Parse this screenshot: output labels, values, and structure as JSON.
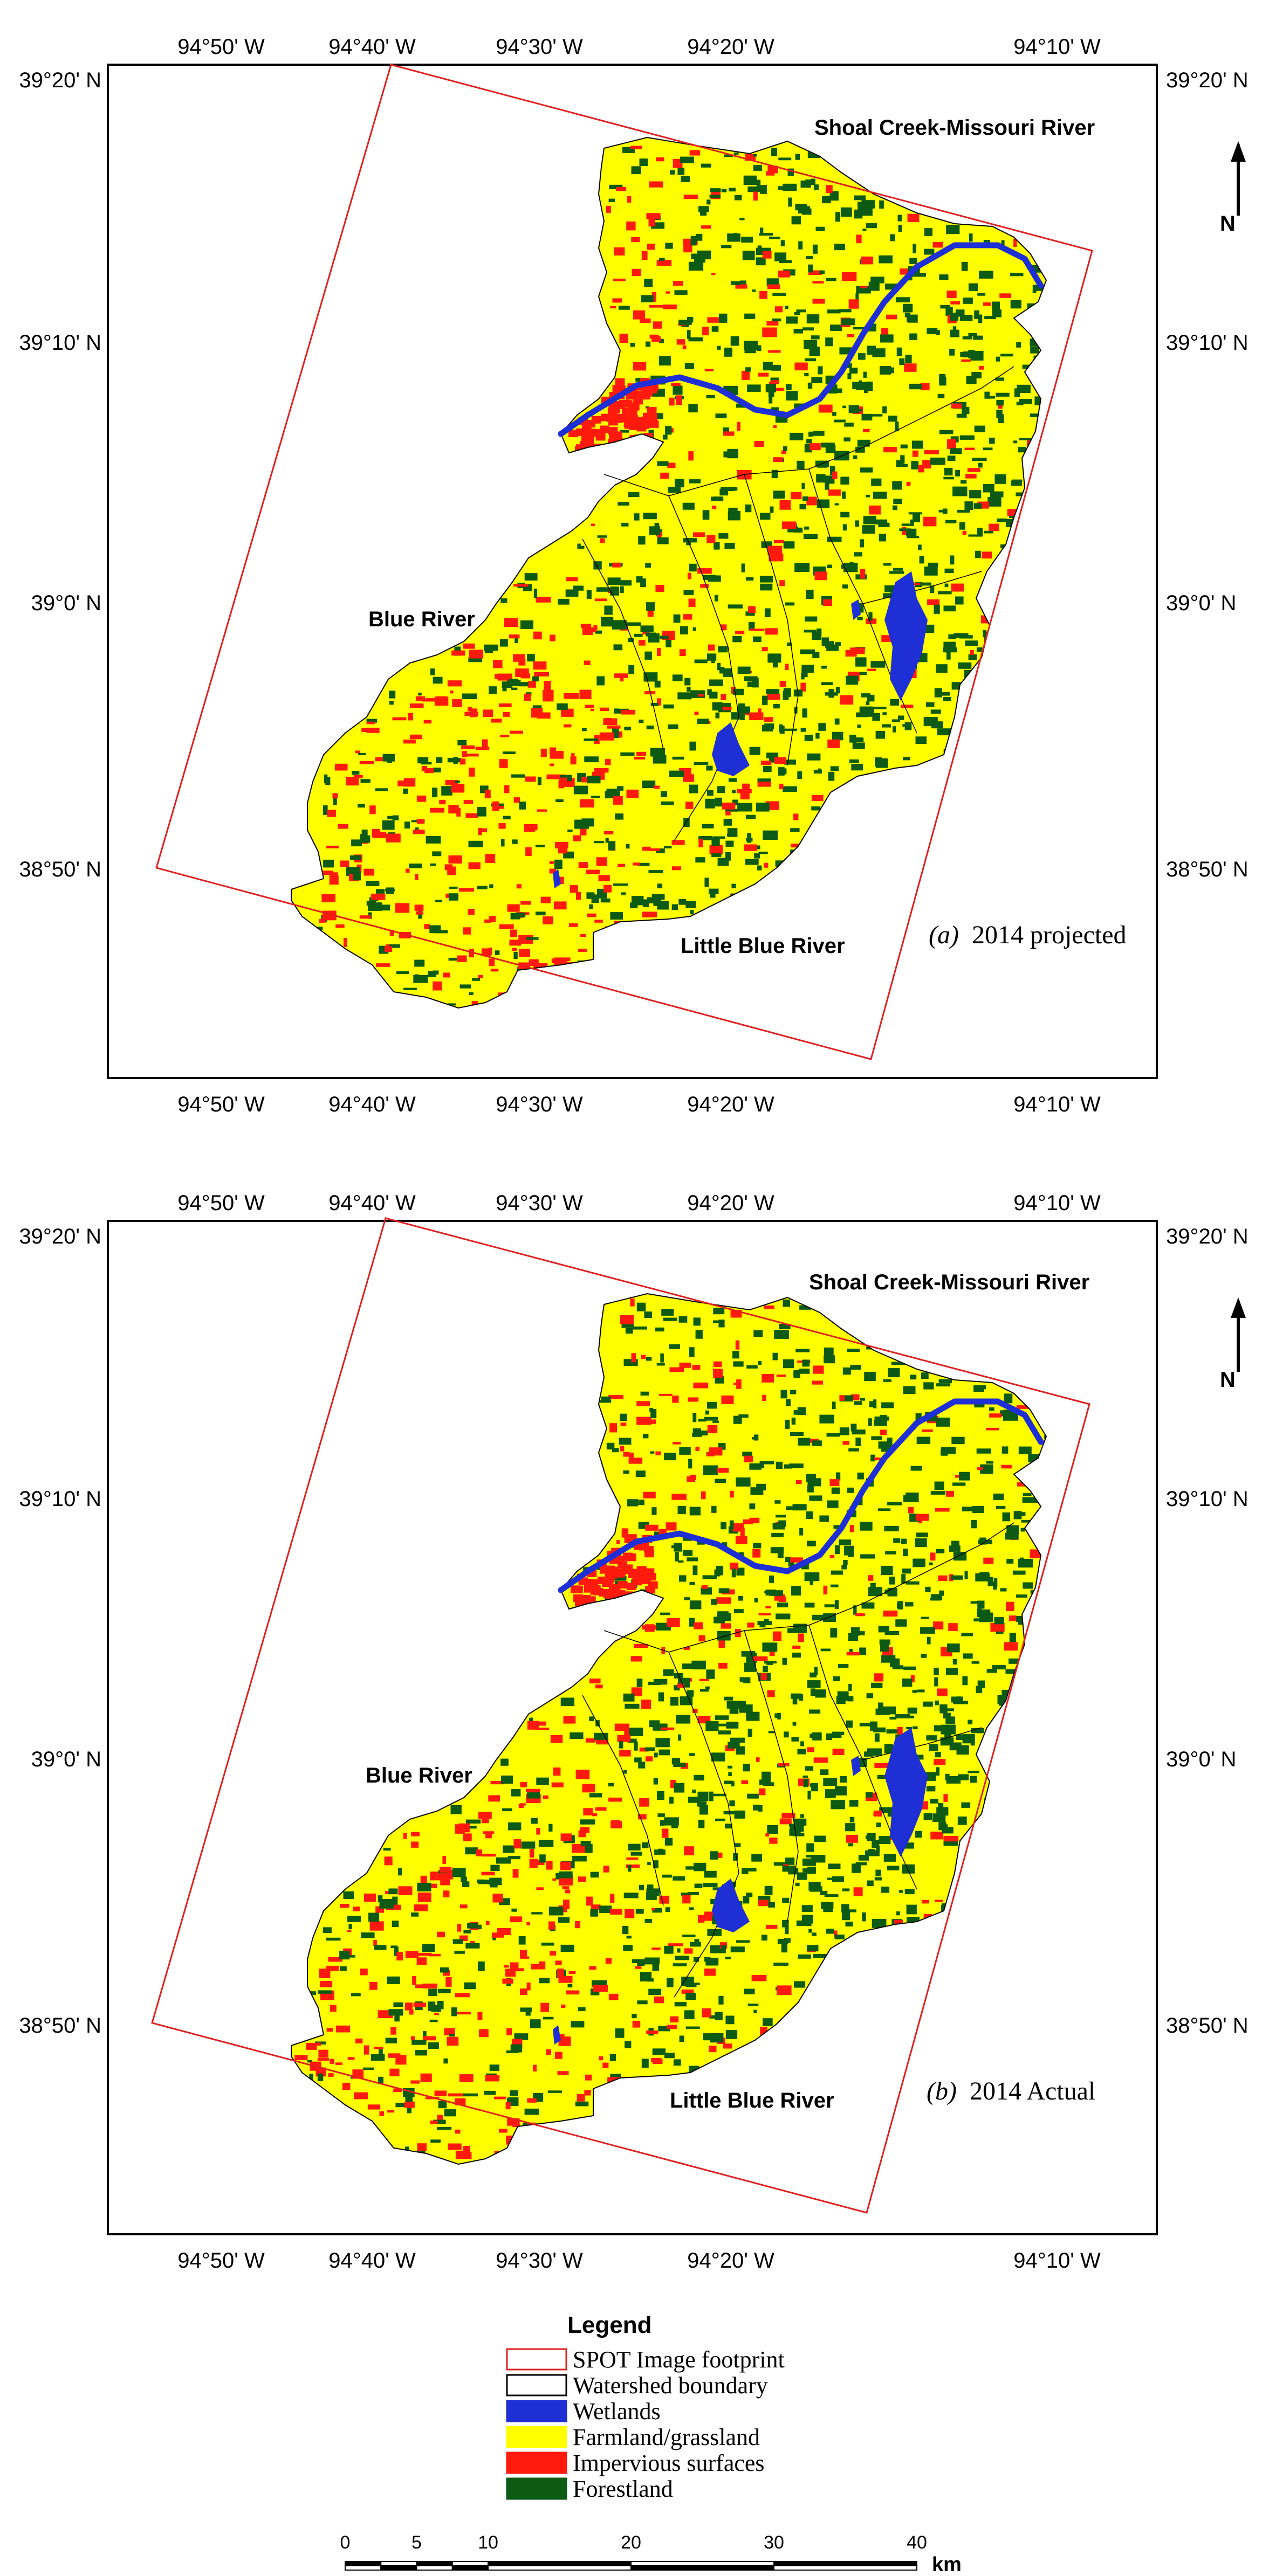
{
  "panels": [
    {
      "id": "a",
      "caption_letter": "(a)",
      "caption_text": "2014 projected",
      "top_ticks": [
        "94°50' W",
        "94°40' W",
        "94°30' W",
        "94°20' W",
        "94°10' W"
      ],
      "bottom_ticks": [
        "94°50' W",
        "94°40' W",
        "94°30' W",
        "94°20' W",
        "94°10' W"
      ],
      "left_ticks": [
        "39°20' N",
        "39°10' N",
        "39°0' N",
        "38°50' N"
      ],
      "right_ticks": [
        "39°20' N",
        "39°10' N",
        "39°0' N",
        "38°50' N"
      ],
      "watersheds": {
        "shoal_creek": "Shoal Creek-Missouri River",
        "blue_river": "Blue River",
        "little_blue": "Little Blue River"
      },
      "north_label": "N"
    },
    {
      "id": "b",
      "caption_letter": "(b)",
      "caption_text": "2014 Actual",
      "top_ticks": [
        "94°50' W",
        "94°40' W",
        "94°30' W",
        "94°20' W",
        "94°10' W"
      ],
      "bottom_ticks": [
        "94°50' W",
        "94°40' W",
        "94°30' W",
        "94°20' W",
        "94°10' W"
      ],
      "left_ticks": [
        "39°20' N",
        "39°10' N",
        "39°0' N",
        "38°50' N"
      ],
      "right_ticks": [
        "39°20' N",
        "39°10' N",
        "39°0' N",
        "38°50' N"
      ],
      "watersheds": {
        "shoal_creek": "Shoal Creek-Missouri River",
        "blue_river": "Blue River",
        "little_blue": "Little Blue River"
      },
      "north_label": "N"
    }
  ],
  "legend": {
    "title": "Legend",
    "items": [
      {
        "label": "SPOT Image footprint",
        "fill": "#ffffff",
        "stroke": "#e02020"
      },
      {
        "label": "Watershed boundary",
        "fill": "#ffffff",
        "stroke": "#000000"
      },
      {
        "label": "Wetlands",
        "fill": "#1f2fd6",
        "stroke": "#1f2fd6"
      },
      {
        "label": "Farmland/grassland",
        "fill": "#ffff00",
        "stroke": "#ffff00"
      },
      {
        "label": "Impervious surfaces",
        "fill": "#ff1a0d",
        "stroke": "#ff1a0d"
      },
      {
        "label": "Forestland",
        "fill": "#0d5a14",
        "stroke": "#0d5a14"
      }
    ]
  },
  "scale_bar": {
    "labels": [
      "0",
      "5",
      "10",
      "20",
      "30",
      "40"
    ],
    "unit": "km"
  },
  "colors": {
    "farmland": "#ffff00",
    "impervious": "#ff1a0d",
    "forest": "#0d5a14",
    "wetland": "#1f2fd6",
    "footprint": "#e02020",
    "boundary": "#000000"
  }
}
